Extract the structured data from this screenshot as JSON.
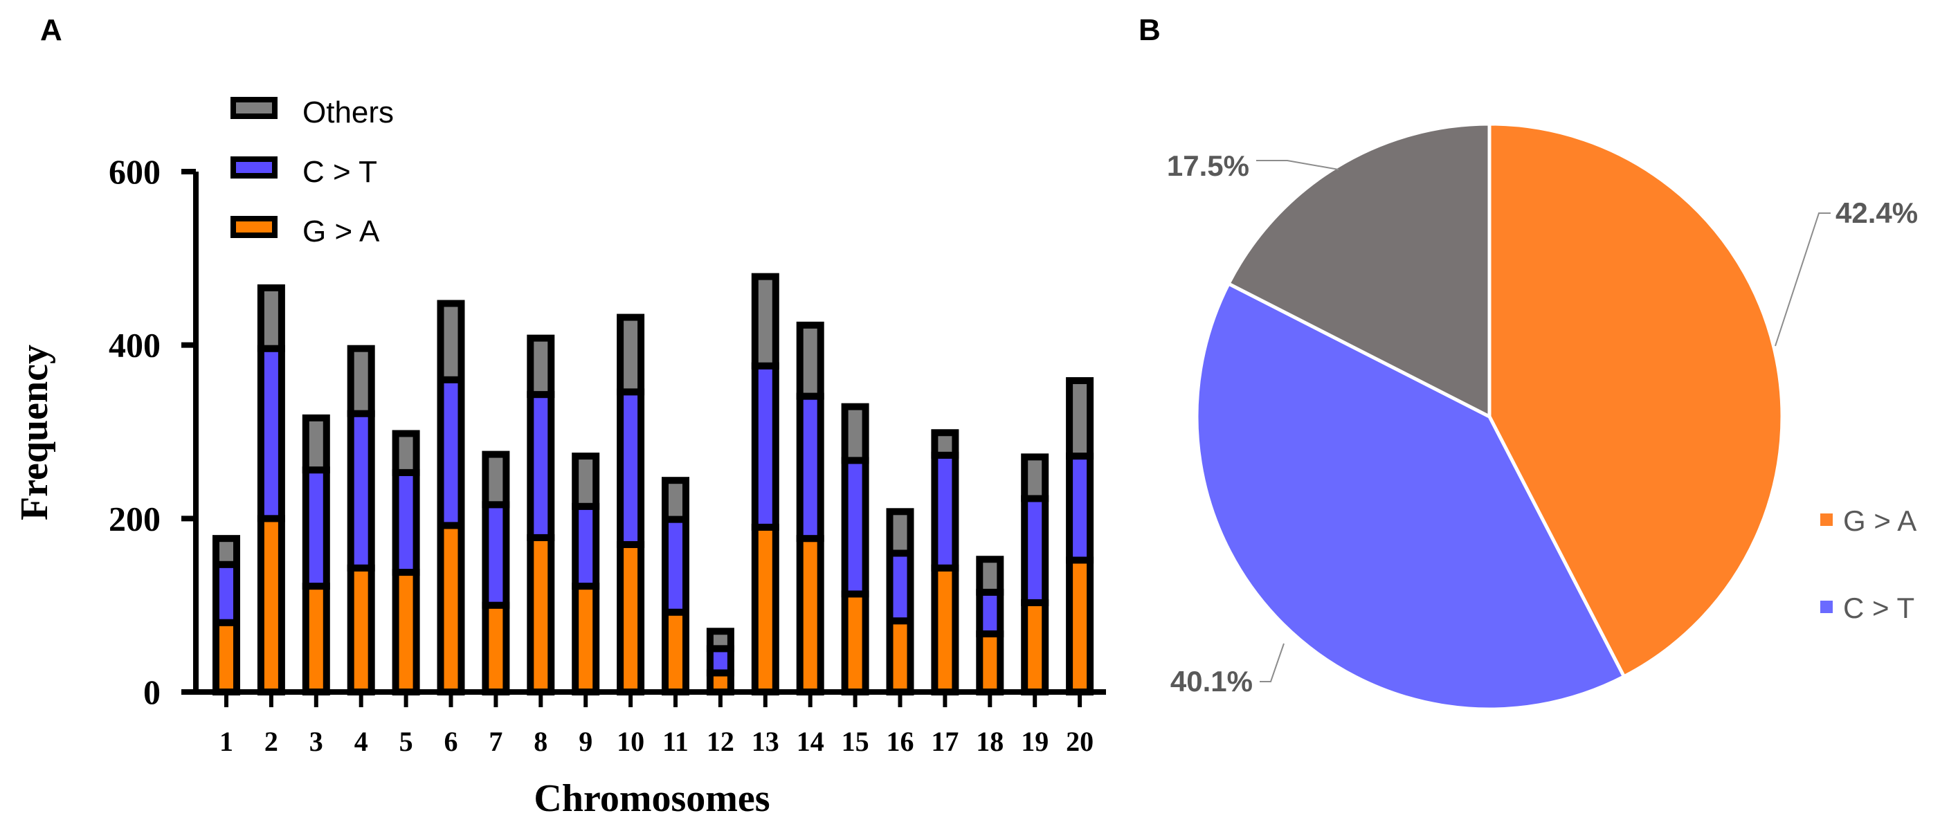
{
  "panels": {
    "a": "A",
    "b": "B"
  },
  "chart_data": [
    {
      "type": "bar",
      "stacked": true,
      "title": "",
      "xlabel": "Chromosomes",
      "ylabel": "Frequency",
      "ylim": [
        0,
        600
      ],
      "yticks": [
        "0",
        "200",
        "400",
        "600"
      ],
      "categories": [
        "1",
        "2",
        "3",
        "4",
        "5",
        "6",
        "7",
        "8",
        "9",
        "10",
        "11",
        "12",
        "13",
        "14",
        "15",
        "16",
        "17",
        "18",
        "19",
        "20"
      ],
      "series": [
        {
          "name": "G > A",
          "color": "#FF7F00",
          "values": [
            80,
            200,
            122,
            143,
            138,
            192,
            100,
            178,
            122,
            170,
            92,
            22,
            190,
            177,
            113,
            82,
            143,
            67,
            103,
            152
          ]
        },
        {
          "name": "C > T",
          "color": "#5A4BFF",
          "values": [
            67,
            196,
            134,
            178,
            115,
            168,
            116,
            165,
            92,
            176,
            107,
            28,
            186,
            164,
            154,
            78,
            130,
            48,
            120,
            120
          ]
        },
        {
          "name": "Others",
          "color": "#7F7F7F",
          "values": [
            30,
            70,
            60,
            75,
            45,
            88,
            58,
            65,
            58,
            86,
            45,
            20,
            103,
            82,
            62,
            48,
            26,
            38,
            48,
            87
          ]
        }
      ],
      "legend": [
        {
          "name": "Others",
          "color": "#7F7F7F"
        },
        {
          "name": "C > T",
          "color": "#5A4BFF"
        },
        {
          "name": "G > A",
          "color": "#FF7F00"
        }
      ],
      "legend_position": "top-left"
    },
    {
      "type": "pie",
      "title": "",
      "slices": [
        {
          "name": "G > A",
          "value": 42.4,
          "label": "42.4%",
          "color": "#FF8228"
        },
        {
          "name": "C > T",
          "value": 40.1,
          "label": "40.1%",
          "color": "#6A6AFF"
        },
        {
          "name": "Others",
          "value": 17.5,
          "label": "17.5%",
          "color": "#787373"
        }
      ],
      "legend": [
        {
          "name": "G > A",
          "color": "#FF8228"
        },
        {
          "name": "C > T",
          "color": "#6A6AFF"
        }
      ],
      "legend_position": "right"
    }
  ]
}
